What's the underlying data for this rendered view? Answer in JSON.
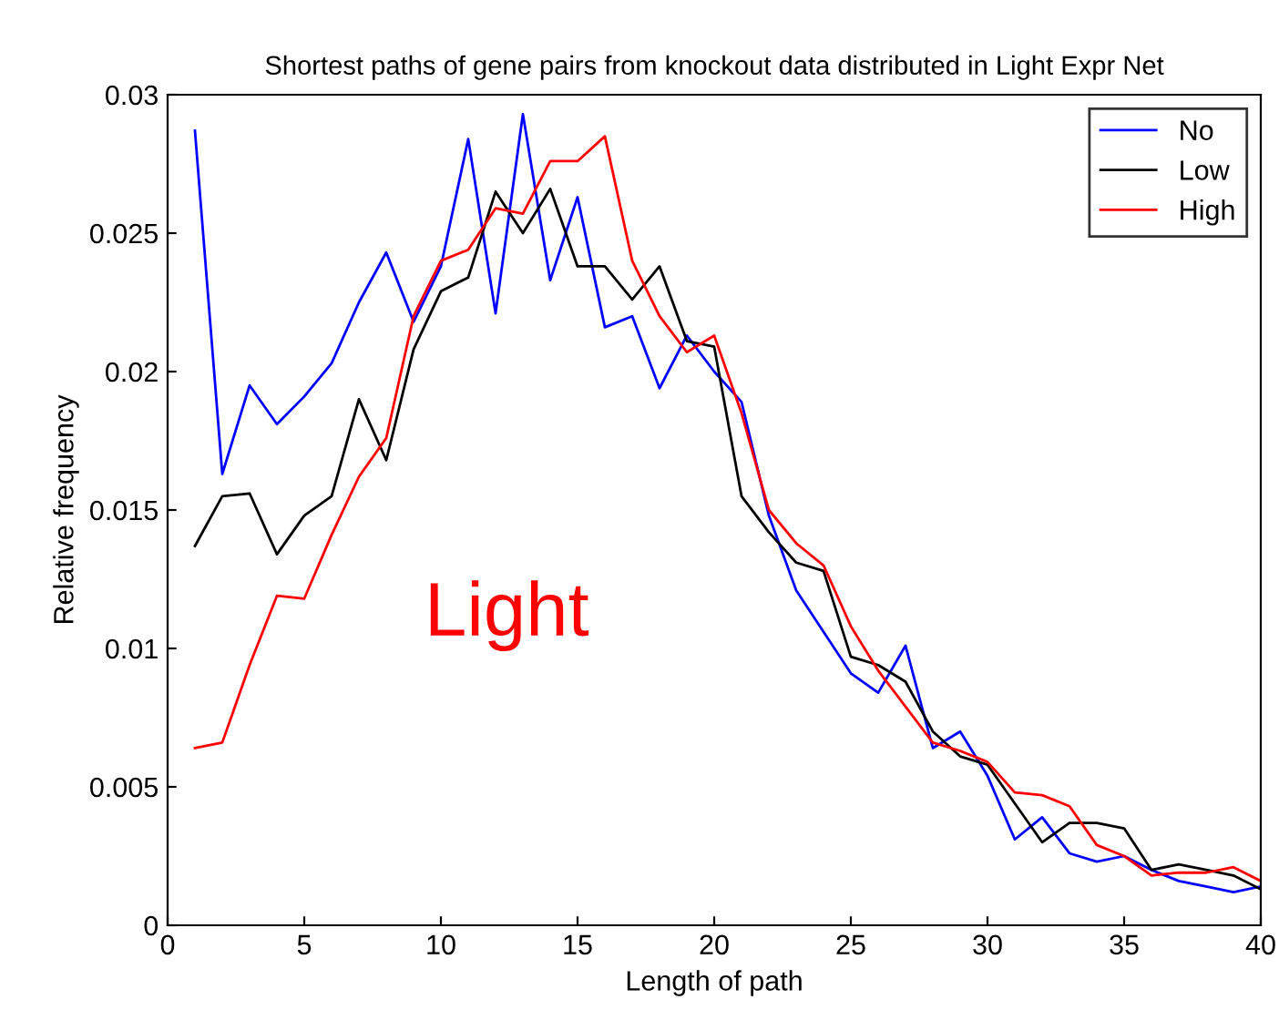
{
  "chart_data": {
    "type": "line",
    "title": "Shortest paths of gene pairs from knockout data distributed in Light Expr Net",
    "xlabel": "Length of path",
    "ylabel": "Relative frequency",
    "x": [
      1,
      2,
      3,
      4,
      5,
      6,
      7,
      8,
      9,
      10,
      11,
      12,
      13,
      14,
      15,
      16,
      17,
      18,
      19,
      20,
      21,
      22,
      23,
      24,
      25,
      26,
      27,
      28,
      29,
      30,
      31,
      32,
      33,
      34,
      35,
      36,
      37,
      38,
      39,
      40
    ],
    "series": [
      {
        "name": "No",
        "color": "#0000ff",
        "values": [
          0.0287,
          0.0163,
          0.0195,
          0.0181,
          0.0191,
          0.0203,
          0.0225,
          0.0243,
          0.0218,
          0.0238,
          0.0284,
          0.0221,
          0.0293,
          0.0233,
          0.0263,
          0.0216,
          0.022,
          0.0194,
          0.0213,
          0.02,
          0.0189,
          0.0148,
          0.0121,
          0.0106,
          0.0091,
          0.0084,
          0.0101,
          0.0064,
          0.007,
          0.0054,
          0.0031,
          0.0039,
          0.0026,
          0.0023,
          0.0025,
          0.002,
          0.0016,
          0.0014,
          0.0012,
          0.0014
        ]
      },
      {
        "name": "Low",
        "color": "#000000",
        "values": [
          0.0137,
          0.0155,
          0.0156,
          0.0134,
          0.0148,
          0.0155,
          0.019,
          0.0168,
          0.0208,
          0.0229,
          0.0234,
          0.0265,
          0.025,
          0.0266,
          0.0238,
          0.0238,
          0.0226,
          0.0238,
          0.0211,
          0.0209,
          0.0155,
          0.0142,
          0.0131,
          0.0128,
          0.0097,
          0.0094,
          0.0088,
          0.007,
          0.0061,
          0.0058,
          0.0044,
          0.003,
          0.0037,
          0.0037,
          0.0035,
          0.002,
          0.0022,
          0.002,
          0.0018,
          0.0013
        ]
      },
      {
        "name": "High",
        "color": "#ff0000",
        "values": [
          0.0064,
          0.0066,
          0.0094,
          0.0119,
          0.0118,
          0.0141,
          0.0162,
          0.0176,
          0.022,
          0.024,
          0.0244,
          0.0259,
          0.0257,
          0.0276,
          0.0276,
          0.0285,
          0.024,
          0.022,
          0.0207,
          0.0213,
          0.0185,
          0.015,
          0.0138,
          0.013,
          0.0108,
          0.0092,
          0.0079,
          0.0066,
          0.0063,
          0.0059,
          0.0048,
          0.0047,
          0.0043,
          0.0029,
          0.0025,
          0.0018,
          0.0019,
          0.0019,
          0.0021,
          0.0016
        ]
      }
    ],
    "xlim": [
      0,
      40
    ],
    "ylim": [
      0,
      0.03
    ],
    "xticks": [
      0,
      5,
      10,
      15,
      20,
      25,
      30,
      35,
      40
    ],
    "yticks": [
      0,
      0.005,
      0.01,
      0.015,
      0.02,
      0.025,
      0.03
    ],
    "legend": "top right",
    "grid": false,
    "marker": "none",
    "line_style": "solid",
    "annotations": [
      "Light"
    ]
  }
}
